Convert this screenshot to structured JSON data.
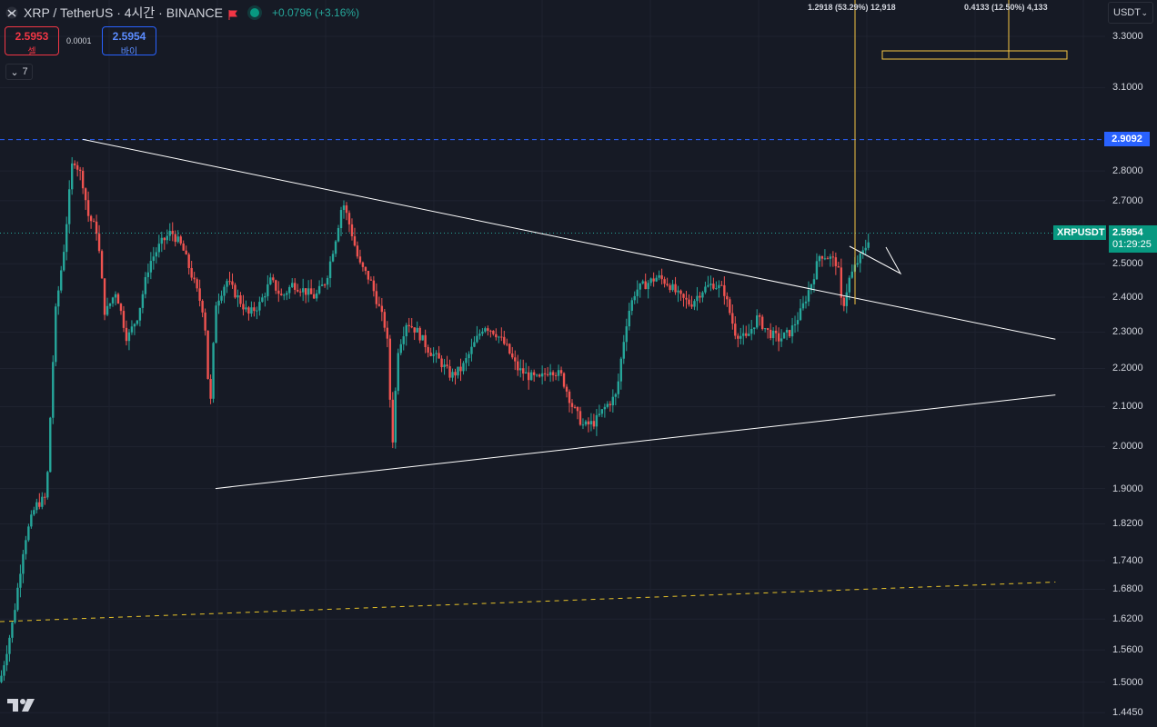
{
  "header": {
    "symbol": "XRP / TetherUS · 4시간 · BINANCE",
    "change": "+0.0796 (+3.16%)"
  },
  "trade": {
    "sell_price": "2.5953",
    "sell_label": "셀",
    "spread": "0.0001",
    "buy_price": "2.5954",
    "buy_label": "바이"
  },
  "indicator_toggle": {
    "count": "7"
  },
  "currency_selector": {
    "value": "USDT"
  },
  "measure_labels": {
    "left": "1.2918 (53.29%) 12,918",
    "right": "0.4133 (12.50%) 4,133"
  },
  "price_axis": {
    "ticks": [
      "3.3000",
      "3.1000",
      "2.8000",
      "2.7000",
      "2.5000",
      "2.4000",
      "2.3000",
      "2.2000",
      "2.1000",
      "2.0000",
      "1.9000",
      "1.8200",
      "1.7400",
      "1.6800",
      "1.6200",
      "1.5600",
      "1.5000",
      "1.4450"
    ],
    "tick_values": [
      3.3,
      3.1,
      2.8,
      2.7,
      2.5,
      2.4,
      2.3,
      2.2,
      2.1,
      2.0,
      1.9,
      1.82,
      1.74,
      1.68,
      1.62,
      1.56,
      1.5,
      1.445
    ],
    "level_label": "2.9092",
    "symbol_label": "XRPUSDT",
    "last_price": "2.5954",
    "countdown": "01:29:25"
  },
  "colors": {
    "background": "#161a25",
    "up": "#26a69a",
    "down": "#ef5350",
    "level_line": "#2962ff",
    "trend_line": "#ffffff",
    "dashed_trend": "#e6c229",
    "measure": "#f5c542"
  },
  "chart_data": {
    "type": "candlestick",
    "symbol": "XRPUSDT",
    "exchange": "BINANCE",
    "interval": "4시간",
    "scale": "log",
    "ylim": [
      1.42,
      3.45
    ],
    "last_price": 2.5954,
    "horizontal_level": 2.9092,
    "trendlines": [
      {
        "name": "upper",
        "from": [
          0.075,
          2.91
        ],
        "to": [
          0.955,
          2.28
        ]
      },
      {
        "name": "lower",
        "from": [
          0.195,
          1.9
        ],
        "to": [
          0.955,
          2.13
        ]
      },
      {
        "name": "dashed",
        "from": [
          0.0,
          1.615
        ],
        "to": [
          0.955,
          1.695
        ]
      }
    ],
    "path": [
      [
        0,
        1.5
      ],
      [
        0.012,
        1.62
      ],
      [
        0.022,
        1.78
      ],
      [
        0.032,
        1.86
      ],
      [
        0.042,
        1.88
      ],
      [
        0.05,
        2.35
      ],
      [
        0.058,
        2.55
      ],
      [
        0.066,
        2.85
      ],
      [
        0.074,
        2.78
      ],
      [
        0.08,
        2.65
      ],
      [
        0.088,
        2.6
      ],
      [
        0.095,
        2.35
      ],
      [
        0.105,
        2.42
      ],
      [
        0.115,
        2.28
      ],
      [
        0.125,
        2.35
      ],
      [
        0.135,
        2.5
      ],
      [
        0.145,
        2.56
      ],
      [
        0.155,
        2.6
      ],
      [
        0.165,
        2.55
      ],
      [
        0.175,
        2.45
      ],
      [
        0.185,
        2.35
      ],
      [
        0.19,
        2.08
      ],
      [
        0.195,
        2.38
      ],
      [
        0.205,
        2.45
      ],
      [
        0.215,
        2.4
      ],
      [
        0.225,
        2.35
      ],
      [
        0.235,
        2.38
      ],
      [
        0.245,
        2.45
      ],
      [
        0.255,
        2.4
      ],
      [
        0.265,
        2.44
      ],
      [
        0.275,
        2.42
      ],
      [
        0.285,
        2.4
      ],
      [
        0.295,
        2.45
      ],
      [
        0.305,
        2.6
      ],
      [
        0.31,
        2.7
      ],
      [
        0.318,
        2.6
      ],
      [
        0.325,
        2.5
      ],
      [
        0.335,
        2.45
      ],
      [
        0.342,
        2.38
      ],
      [
        0.35,
        2.3
      ],
      [
        0.355,
        2.0
      ],
      [
        0.36,
        2.25
      ],
      [
        0.368,
        2.33
      ],
      [
        0.378,
        2.3
      ],
      [
        0.388,
        2.25
      ],
      [
        0.398,
        2.22
      ],
      [
        0.408,
        2.18
      ],
      [
        0.418,
        2.2
      ],
      [
        0.428,
        2.26
      ],
      [
        0.438,
        2.32
      ],
      [
        0.448,
        2.3
      ],
      [
        0.458,
        2.26
      ],
      [
        0.468,
        2.2
      ],
      [
        0.478,
        2.18
      ],
      [
        0.488,
        2.17
      ],
      [
        0.498,
        2.2
      ],
      [
        0.508,
        2.18
      ],
      [
        0.518,
        2.1
      ],
      [
        0.528,
        2.05
      ],
      [
        0.538,
        2.06
      ],
      [
        0.548,
        2.1
      ],
      [
        0.558,
        2.13
      ],
      [
        0.563,
        2.25
      ],
      [
        0.568,
        2.35
      ],
      [
        0.575,
        2.42
      ],
      [
        0.585,
        2.44
      ],
      [
        0.595,
        2.46
      ],
      [
        0.605,
        2.44
      ],
      [
        0.615,
        2.4
      ],
      [
        0.625,
        2.38
      ],
      [
        0.635,
        2.42
      ],
      [
        0.645,
        2.44
      ],
      [
        0.655,
        2.42
      ],
      [
        0.665,
        2.3
      ],
      [
        0.675,
        2.28
      ],
      [
        0.685,
        2.34
      ],
      [
        0.695,
        2.3
      ],
      [
        0.705,
        2.28
      ],
      [
        0.715,
        2.3
      ],
      [
        0.725,
        2.36
      ],
      [
        0.735,
        2.45
      ],
      [
        0.742,
        2.53
      ],
      [
        0.75,
        2.52
      ],
      [
        0.758,
        2.5
      ],
      [
        0.762,
        2.36
      ],
      [
        0.768,
        2.45
      ],
      [
        0.775,
        2.5
      ],
      [
        0.782,
        2.54
      ],
      [
        0.787,
        2.59
      ]
    ]
  }
}
